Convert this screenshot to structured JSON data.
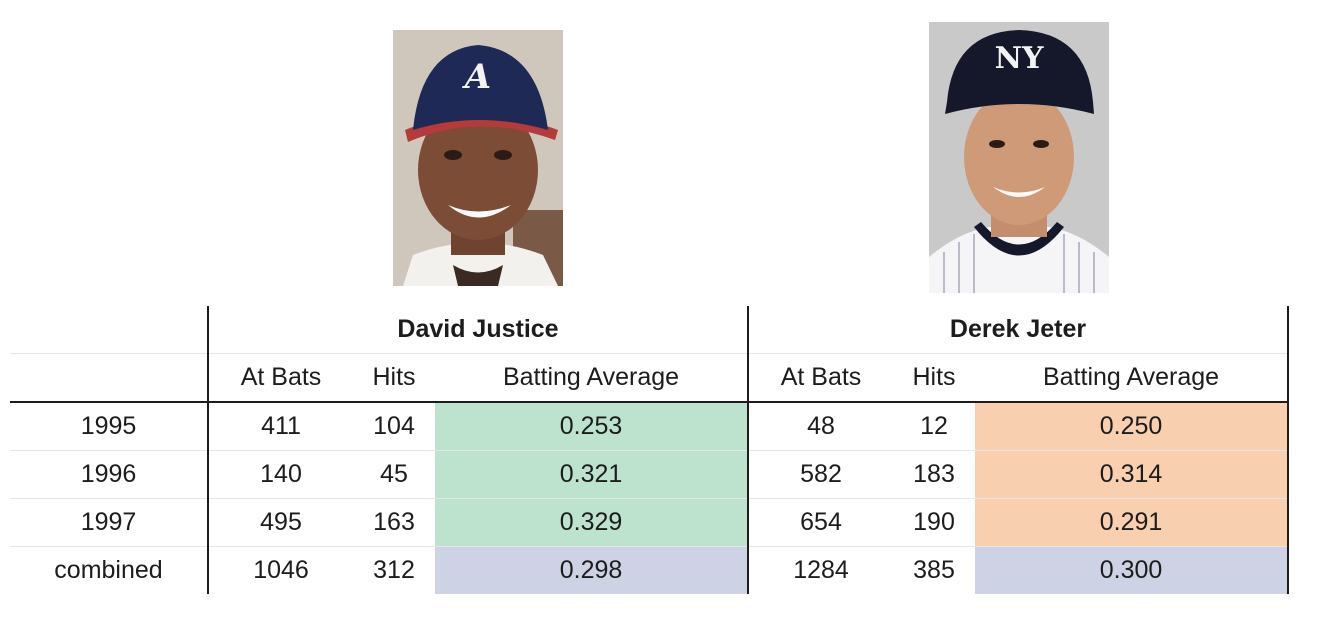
{
  "players": [
    {
      "name": "David Justice",
      "team_cap": "Atlanta Braves cap",
      "cap_logo": "A"
    },
    {
      "name": "Derek Jeter",
      "team_cap": "New York Yankees cap",
      "cap_logo": "NY"
    }
  ],
  "columns": [
    "At Bats",
    "Hits",
    "Batting Average"
  ],
  "rows": [
    {
      "label": "1995",
      "justice": {
        "ab": "411",
        "hits": "104",
        "avg": "0.253"
      },
      "jeter": {
        "ab": "48",
        "hits": "12",
        "avg": "0.250"
      }
    },
    {
      "label": "1996",
      "justice": {
        "ab": "140",
        "hits": "45",
        "avg": "0.321"
      },
      "jeter": {
        "ab": "582",
        "hits": "183",
        "avg": "0.314"
      }
    },
    {
      "label": "1997",
      "justice": {
        "ab": "495",
        "hits": "163",
        "avg": "0.329"
      },
      "jeter": {
        "ab": "654",
        "hits": "190",
        "avg": "0.291"
      }
    },
    {
      "label": "combined",
      "justice": {
        "ab": "1046",
        "hits": "312",
        "avg": "0.298"
      },
      "jeter": {
        "ab": "1284",
        "hits": "385",
        "avg": "0.300"
      }
    }
  ],
  "colors": {
    "justice_yearly_avg": "#bde3ce",
    "jeter_yearly_avg": "#f8d0b0",
    "combined_avg": "#cdd3e5"
  }
}
